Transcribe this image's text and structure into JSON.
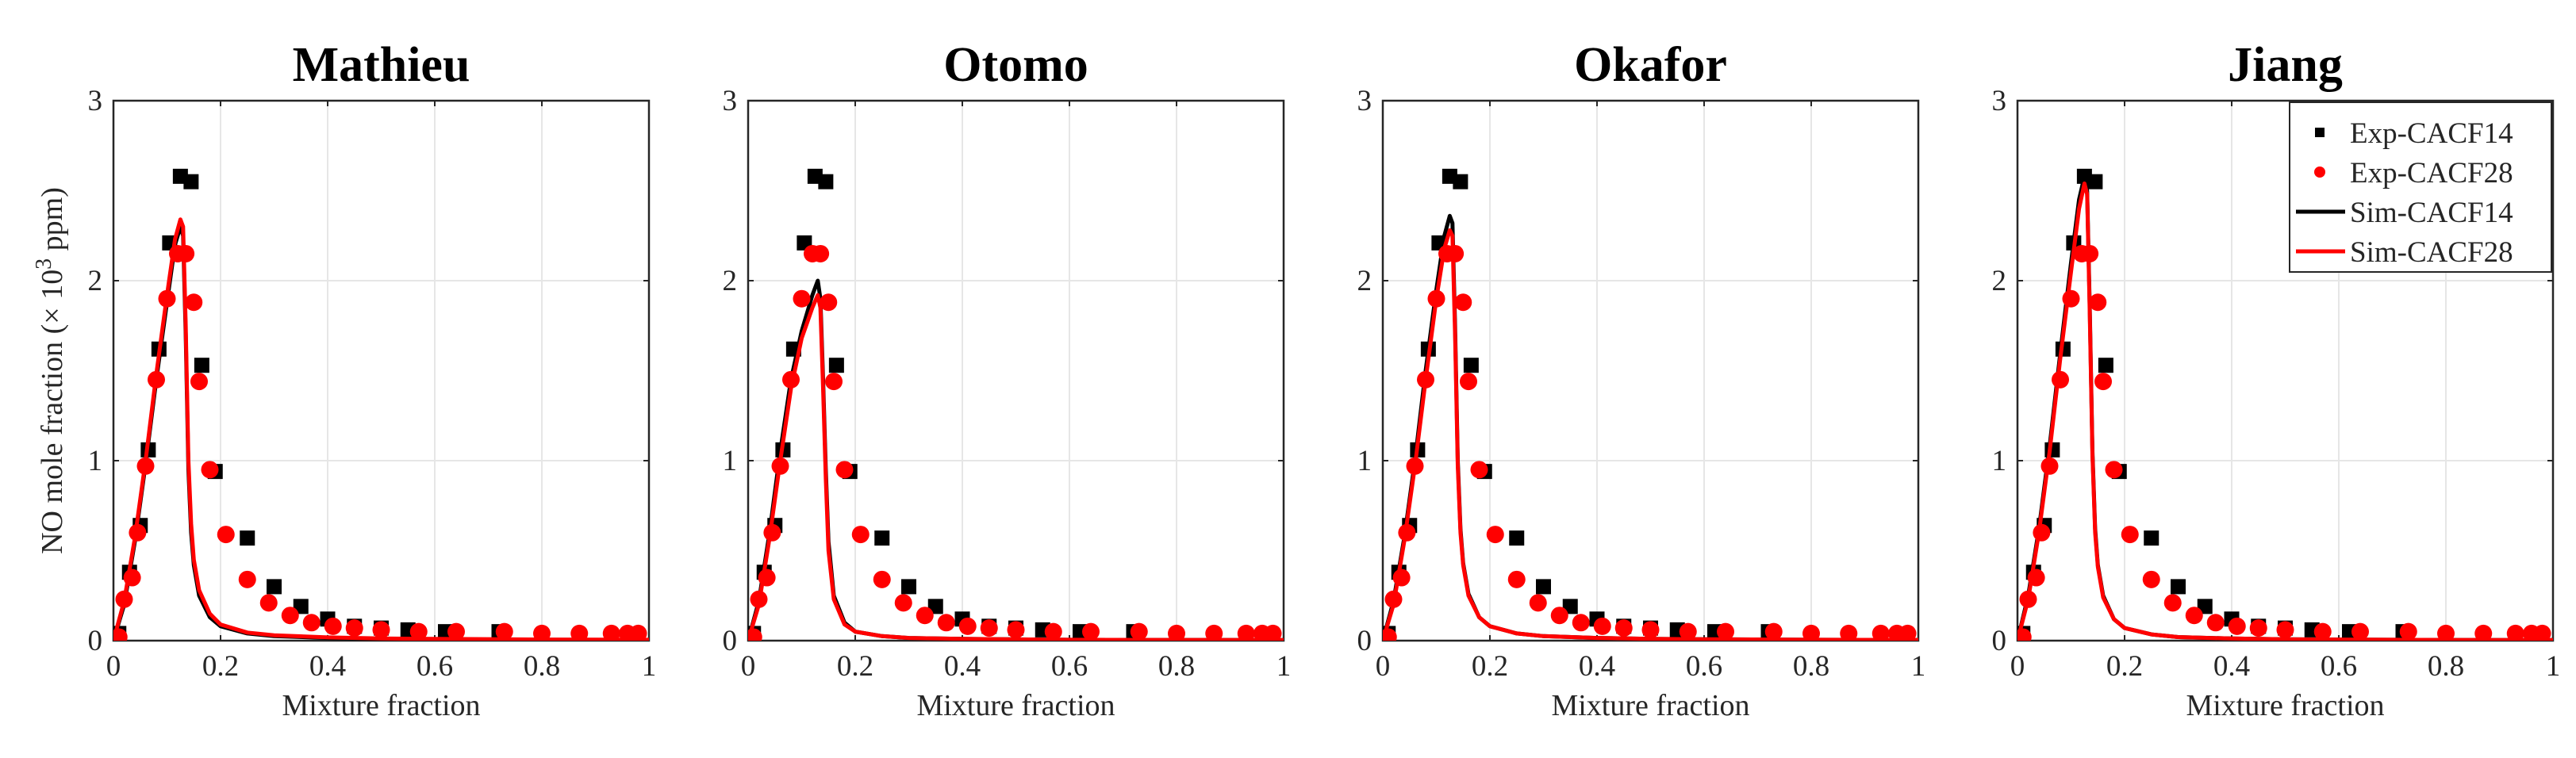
{
  "chart_data": {
    "type": "line+scatter",
    "ylabel_prefix": "NO mole fraction (× 10",
    "ylabel_sup": "3",
    "ylabel_suffix": " ppm)",
    "xlabel": "Mixture fraction",
    "xlim": [
      0,
      1
    ],
    "ylim": [
      0,
      3
    ],
    "x_ticks": [
      "0",
      "0.2",
      "0.4",
      "0.6",
      "0.8",
      "1"
    ],
    "y_ticks": [
      "0",
      "1",
      "2",
      "3"
    ],
    "colors": {
      "black": "#000000",
      "red": "#ff0000",
      "grid": "#e6e6e6",
      "axis": "#262626"
    },
    "legend": {
      "placement": "top-right (Jiang panel)",
      "entries": [
        "Exp-CACF14",
        "Exp-CACF28",
        "Sim-CACF14",
        "Sim-CACF28"
      ]
    },
    "experiments": {
      "Exp-CACF14": {
        "x": [
          0.01,
          0.03,
          0.05,
          0.065,
          0.085,
          0.105,
          0.125,
          0.145,
          0.165,
          0.19,
          0.25,
          0.3,
          0.35,
          0.4,
          0.45,
          0.5,
          0.55,
          0.62,
          0.72
        ],
        "y": [
          0.04,
          0.38,
          0.64,
          1.06,
          1.62,
          2.21,
          2.58,
          2.55,
          1.53,
          0.94,
          0.57,
          0.3,
          0.19,
          0.12,
          0.08,
          0.07,
          0.06,
          0.05,
          0.05
        ]
      },
      "Exp-CACF28": {
        "x": [
          0.01,
          0.02,
          0.035,
          0.045,
          0.06,
          0.08,
          0.1,
          0.12,
          0.135,
          0.15,
          0.16,
          0.18,
          0.21,
          0.25,
          0.29,
          0.33,
          0.37,
          0.41,
          0.45,
          0.5,
          0.57,
          0.64,
          0.73,
          0.8,
          0.87,
          0.93,
          0.96,
          0.98
        ],
        "y": [
          0.02,
          0.23,
          0.35,
          0.6,
          0.97,
          1.45,
          1.9,
          2.15,
          2.15,
          1.88,
          1.44,
          0.95,
          0.59,
          0.34,
          0.21,
          0.14,
          0.1,
          0.08,
          0.07,
          0.06,
          0.05,
          0.05,
          0.05,
          0.04,
          0.04,
          0.04,
          0.04,
          0.04
        ]
      }
    },
    "panels": [
      {
        "title": "Mathieu",
        "show_legend": false,
        "series": [
          {
            "name": "Sim-CACF14",
            "x": [
              0,
              0.02,
              0.04,
              0.06,
              0.08,
              0.1,
              0.115,
              0.125,
              0.13,
              0.135,
              0.14,
              0.145,
              0.15,
              0.16,
              0.18,
              0.2,
              0.25,
              0.3,
              0.4,
              0.5,
              0.6,
              0.8,
              1
            ],
            "y": [
              0,
              0.2,
              0.55,
              0.98,
              1.45,
              1.88,
              2.2,
              2.3,
              2.25,
              1.7,
              0.95,
              0.6,
              0.42,
              0.25,
              0.13,
              0.08,
              0.04,
              0.025,
              0.015,
              0.01,
              0.008,
              0.005,
              0.004
            ]
          },
          {
            "name": "Sim-CACF28",
            "x": [
              0,
              0.02,
              0.04,
              0.06,
              0.08,
              0.1,
              0.115,
              0.125,
              0.13,
              0.135,
              0.14,
              0.145,
              0.15,
              0.16,
              0.18,
              0.2,
              0.25,
              0.3,
              0.4,
              0.5,
              0.6,
              0.8,
              1
            ],
            "y": [
              0,
              0.22,
              0.57,
              1.0,
              1.48,
              1.92,
              2.23,
              2.34,
              2.3,
              1.75,
              1.0,
              0.65,
              0.45,
              0.28,
              0.15,
              0.09,
              0.045,
              0.03,
              0.018,
              0.012,
              0.01,
              0.006,
              0.005
            ]
          }
        ]
      },
      {
        "title": "Otomo",
        "show_legend": false,
        "series": [
          {
            "name": "Sim-CACF14",
            "x": [
              0,
              0.02,
              0.04,
              0.06,
              0.08,
              0.1,
              0.12,
              0.13,
              0.135,
              0.14,
              0.145,
              0.15,
              0.16,
              0.18,
              0.2,
              0.25,
              0.3,
              0.4,
              0.5,
              0.6,
              0.8,
              1
            ],
            "y": [
              0,
              0.22,
              0.6,
              1.05,
              1.45,
              1.72,
              1.92,
              2.0,
              1.9,
              1.45,
              0.95,
              0.55,
              0.25,
              0.1,
              0.05,
              0.025,
              0.015,
              0.01,
              0.007,
              0.005,
              0.004,
              0.003
            ]
          },
          {
            "name": "Sim-CACF28",
            "x": [
              0,
              0.02,
              0.04,
              0.06,
              0.08,
              0.1,
              0.12,
              0.13,
              0.135,
              0.14,
              0.145,
              0.15,
              0.16,
              0.18,
              0.2,
              0.25,
              0.3,
              0.4,
              0.5,
              0.6,
              0.8,
              1
            ],
            "y": [
              0,
              0.2,
              0.57,
              1.0,
              1.4,
              1.68,
              1.85,
              1.92,
              1.85,
              1.4,
              0.9,
              0.5,
              0.23,
              0.09,
              0.05,
              0.025,
              0.015,
              0.01,
              0.007,
              0.005,
              0.004,
              0.003
            ]
          }
        ]
      },
      {
        "title": "Okafor",
        "show_legend": false,
        "series": [
          {
            "name": "Sim-CACF14",
            "x": [
              0,
              0.02,
              0.04,
              0.06,
              0.08,
              0.1,
              0.115,
              0.125,
              0.13,
              0.135,
              0.14,
              0.145,
              0.15,
              0.16,
              0.18,
              0.2,
              0.25,
              0.3,
              0.4,
              0.5,
              0.6,
              0.8,
              1
            ],
            "y": [
              0,
              0.22,
              0.57,
              1.0,
              1.5,
              1.95,
              2.25,
              2.36,
              2.32,
              1.75,
              1.0,
              0.62,
              0.43,
              0.26,
              0.13,
              0.08,
              0.04,
              0.025,
              0.015,
              0.01,
              0.008,
              0.005,
              0.004
            ]
          },
          {
            "name": "Sim-CACF28",
            "x": [
              0,
              0.02,
              0.04,
              0.06,
              0.08,
              0.1,
              0.115,
              0.125,
              0.13,
              0.135,
              0.14,
              0.145,
              0.15,
              0.16,
              0.18,
              0.2,
              0.25,
              0.3,
              0.4,
              0.5,
              0.6,
              0.8,
              1
            ],
            "y": [
              0,
              0.2,
              0.55,
              0.97,
              1.45,
              1.9,
              2.18,
              2.28,
              2.25,
              1.7,
              0.97,
              0.6,
              0.42,
              0.25,
              0.13,
              0.08,
              0.04,
              0.025,
              0.015,
              0.01,
              0.008,
              0.005,
              0.004
            ]
          }
        ]
      },
      {
        "title": "Jiang",
        "show_legend": true,
        "series": [
          {
            "name": "Sim-CACF14",
            "x": [
              0,
              0.02,
              0.04,
              0.06,
              0.08,
              0.1,
              0.115,
              0.125,
              0.13,
              0.135,
              0.14,
              0.145,
              0.15,
              0.16,
              0.18,
              0.2,
              0.25,
              0.3,
              0.4,
              0.5,
              0.6,
              0.8,
              1
            ],
            "y": [
              0,
              0.25,
              0.62,
              1.08,
              1.6,
              2.1,
              2.45,
              2.58,
              2.5,
              1.85,
              1.05,
              0.62,
              0.42,
              0.25,
              0.12,
              0.07,
              0.035,
              0.02,
              0.012,
              0.008,
              0.006,
              0.004,
              0.003
            ]
          },
          {
            "name": "Sim-CACF28",
            "x": [
              0,
              0.02,
              0.04,
              0.06,
              0.08,
              0.1,
              0.115,
              0.125,
              0.13,
              0.135,
              0.14,
              0.145,
              0.15,
              0.16,
              0.18,
              0.2,
              0.25,
              0.3,
              0.4,
              0.5,
              0.6,
              0.8,
              1
            ],
            "y": [
              0,
              0.23,
              0.6,
              1.05,
              1.57,
              2.05,
              2.4,
              2.54,
              2.48,
              1.82,
              1.03,
              0.6,
              0.41,
              0.24,
              0.12,
              0.07,
              0.035,
              0.02,
              0.012,
              0.008,
              0.006,
              0.004,
              0.003
            ]
          }
        ]
      }
    ]
  }
}
